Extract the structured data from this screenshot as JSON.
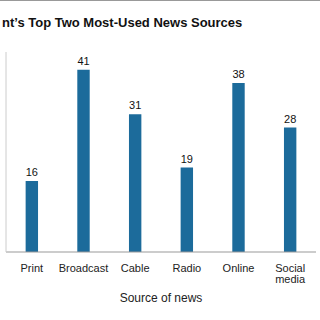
{
  "chart_data": {
    "type": "bar",
    "title": "nt’s Top Two Most-Used News Sources",
    "x_label": "Source of news",
    "categories": [
      "Print",
      "Broadcast",
      "Cable",
      "Radio",
      "Online",
      "Social media"
    ],
    "values": [
      16,
      41,
      31,
      19,
      38,
      28
    ],
    "color": "#1c6b9b",
    "ylim": [
      0,
      45
    ],
    "data_labels": true,
    "tick_labels": "x",
    "grid": false
  }
}
